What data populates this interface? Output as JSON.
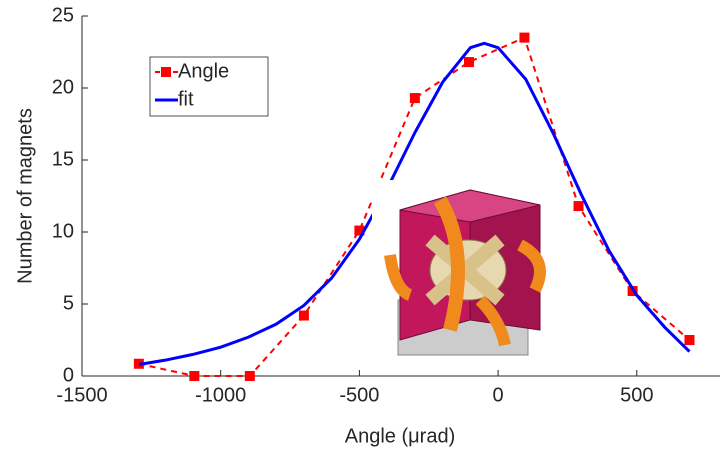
{
  "chart_data": {
    "type": "line",
    "xlabel": "Angle (μrad)",
    "ylabel": "Number of magnets",
    "xlim": [
      -1500,
      800
    ],
    "ylim": [
      0,
      25
    ],
    "xticks": [
      -1500,
      -1000,
      -500,
      0,
      500
    ],
    "yticks": [
      0,
      5,
      10,
      15,
      20,
      25
    ],
    "grid": false,
    "legend": "upper left",
    "series": [
      {
        "name": "Angle",
        "color": "#ff0000",
        "style": "dashed",
        "marker": "square",
        "x": [
          -1295,
          -1095,
          -895,
          -700,
          -500,
          -300,
          -105,
          95,
          290,
          485,
          690
        ],
        "values": [
          0.85,
          0,
          0,
          4.2,
          10.1,
          19.3,
          21.8,
          23.5,
          11.8,
          5.9,
          2.5
        ]
      },
      {
        "name": "fit",
        "color": "#0000ff",
        "style": "solid",
        "x": [
          -1295,
          -1200,
          -1100,
          -1000,
          -900,
          -800,
          -700,
          -600,
          -500,
          -400,
          -300,
          -200,
          -100,
          -50,
          0,
          100,
          200,
          300,
          400,
          500,
          600,
          690
        ],
        "values": [
          0.8,
          1.1,
          1.5,
          2.0,
          2.7,
          3.6,
          4.9,
          6.8,
          9.5,
          13.0,
          16.9,
          20.4,
          22.8,
          23.1,
          22.8,
          20.6,
          16.8,
          12.6,
          8.7,
          5.6,
          3.4,
          1.7
        ]
      }
    ]
  }
}
